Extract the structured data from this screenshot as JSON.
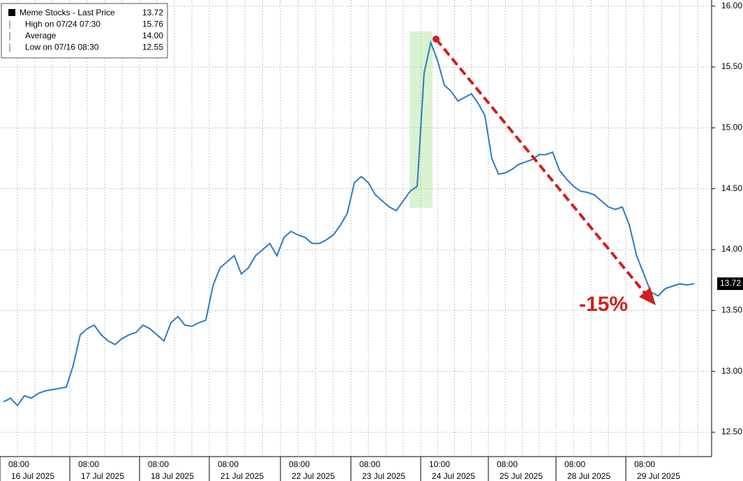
{
  "chart_data": {
    "type": "line",
    "legend": {
      "rows": [
        {
          "label": "Meme Stocks - Last Price",
          "value": "13.72"
        },
        {
          "label": "High on 07/24 07:30",
          "value": "15.76"
        },
        {
          "label": "Average",
          "value": "14.00"
        },
        {
          "label": "Low on 07/16 08:30",
          "value": "12.55"
        }
      ]
    },
    "annotation": "-15%",
    "x_axis": {
      "time_labels": [
        "08:00",
        "08:00",
        "08:00",
        "08:00",
        "08:00",
        "08:00",
        "10:00",
        "08:00",
        "08:00",
        "08:00"
      ],
      "date_labels": [
        "16 Jul 2025",
        "17 Jul 2025",
        "18 Jul 2025",
        "21 Jul 2025",
        "22 Jul 2025",
        "23 Jul 2025",
        "24 Jul 2025",
        "25 Jul 2025",
        "28 Jul 2025",
        "29 Jul 2025"
      ]
    },
    "categories": [
      "16 Jul 2025",
      "16 Jul 2025",
      "16 Jul 2025",
      "16 Jul 2025",
      "16 Jul 2025",
      "16 Jul 2025",
      "16 Jul 2025",
      "16 Jul 2025",
      "16 Jul 2025",
      "16 Jul 2025",
      "17 Jul 2025",
      "17 Jul 2025",
      "17 Jul 2025",
      "17 Jul 2025",
      "17 Jul 2025",
      "17 Jul 2025",
      "17 Jul 2025",
      "17 Jul 2025",
      "17 Jul 2025",
      "17 Jul 2025",
      "18 Jul 2025",
      "18 Jul 2025",
      "18 Jul 2025",
      "18 Jul 2025",
      "18 Jul 2025",
      "18 Jul 2025",
      "18 Jul 2025",
      "18 Jul 2025",
      "18 Jul 2025",
      "18 Jul 2025",
      "21 Jul 2025",
      "21 Jul 2025",
      "21 Jul 2025",
      "21 Jul 2025",
      "21 Jul 2025",
      "21 Jul 2025",
      "21 Jul 2025",
      "21 Jul 2025",
      "21 Jul 2025",
      "21 Jul 2025",
      "22 Jul 2025",
      "22 Jul 2025",
      "22 Jul 2025",
      "22 Jul 2025",
      "22 Jul 2025",
      "22 Jul 2025",
      "22 Jul 2025",
      "22 Jul 2025",
      "22 Jul 2025",
      "22 Jul 2025",
      "23 Jul 2025",
      "23 Jul 2025",
      "23 Jul 2025",
      "23 Jul 2025",
      "23 Jul 2025",
      "23 Jul 2025",
      "23 Jul 2025",
      "23 Jul 2025",
      "23 Jul 2025",
      "23 Jul 2025",
      "24 Jul 2025",
      "24 Jul 2025",
      "24 Jul 2025",
      "24 Jul 2025",
      "24 Jul 2025",
      "24 Jul 2025",
      "24 Jul 2025",
      "24 Jul 2025",
      "24 Jul 2025",
      "24 Jul 2025",
      "25 Jul 2025",
      "25 Jul 2025",
      "25 Jul 2025",
      "25 Jul 2025",
      "25 Jul 2025",
      "25 Jul 2025",
      "25 Jul 2025",
      "25 Jul 2025",
      "25 Jul 2025",
      "25 Jul 2025",
      "28 Jul 2025",
      "28 Jul 2025",
      "28 Jul 2025",
      "28 Jul 2025",
      "28 Jul 2025",
      "28 Jul 2025",
      "28 Jul 2025",
      "28 Jul 2025",
      "28 Jul 2025",
      "28 Jul 2025",
      "29 Jul 2025",
      "29 Jul 2025",
      "29 Jul 2025",
      "29 Jul 2025",
      "29 Jul 2025",
      "29 Jul 2025",
      "29 Jul 2025",
      "29 Jul 2025",
      "29 Jul 2025",
      "29 Jul 2025"
    ],
    "series": [
      {
        "name": "Meme Stocks",
        "color": "#2b7bc0",
        "values": [
          12.75,
          12.78,
          12.72,
          12.8,
          12.78,
          12.82,
          12.84,
          12.85,
          12.86,
          12.87,
          13.05,
          13.3,
          13.35,
          13.38,
          13.3,
          13.25,
          13.22,
          13.27,
          13.3,
          13.32,
          13.38,
          13.35,
          13.3,
          13.25,
          13.4,
          13.45,
          13.38,
          13.37,
          13.4,
          13.42,
          13.7,
          13.85,
          13.9,
          13.95,
          13.8,
          13.85,
          13.95,
          14.0,
          14.05,
          13.95,
          14.1,
          14.15,
          14.12,
          14.1,
          14.05,
          14.05,
          14.08,
          14.12,
          14.2,
          14.3,
          14.55,
          14.6,
          14.55,
          14.45,
          14.4,
          14.35,
          14.32,
          14.4,
          14.48,
          14.52,
          15.45,
          15.7,
          15.55,
          15.35,
          15.3,
          15.22,
          15.25,
          15.28,
          15.2,
          15.1,
          14.75,
          14.62,
          14.63,
          14.66,
          14.7,
          14.72,
          14.74,
          14.78,
          14.78,
          14.8,
          14.65,
          14.58,
          14.52,
          14.48,
          14.47,
          14.45,
          14.4,
          14.35,
          14.33,
          14.35,
          14.2,
          13.95,
          13.8,
          13.65,
          13.62,
          13.68,
          13.7,
          13.72,
          13.71,
          13.72
        ]
      }
    ],
    "ylim": [
      12.3,
      16.05
    ],
    "yticks": [
      {
        "value": 12.5,
        "label": "12.50"
      },
      {
        "value": 13,
        "label": "13.00"
      },
      {
        "value": 13.5,
        "label": "13.50"
      },
      {
        "value": 14,
        "label": "14.00"
      },
      {
        "value": 14.5,
        "label": "14.50"
      },
      {
        "value": 15,
        "label": "15.00"
      },
      {
        "value": 15.5,
        "label": "15.50"
      },
      {
        "value": 16,
        "label": "16.00"
      }
    ],
    "grid": true
  }
}
